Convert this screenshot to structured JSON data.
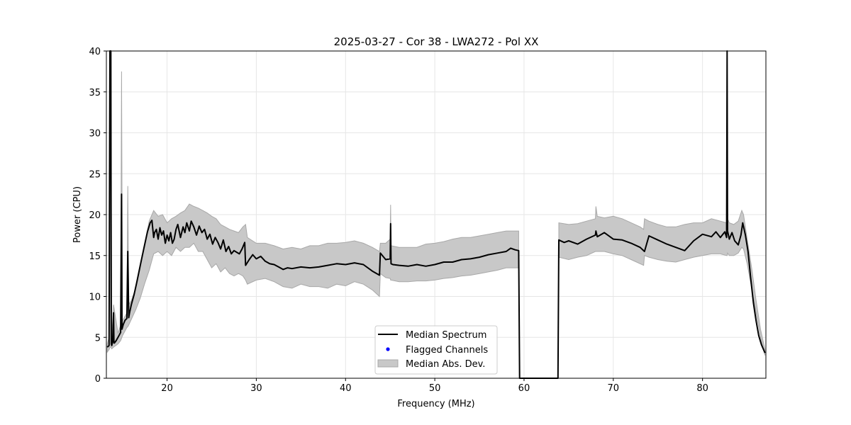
{
  "chart_data": {
    "type": "line",
    "title": "2025-03-27 - Cor 38 - LWA272 - Pol XX",
    "xlabel": "Frequency (MHz)",
    "ylabel": "Power (CPU)",
    "xlim": [
      13.2,
      87.1
    ],
    "ylim": [
      0,
      40
    ],
    "xticks": [
      20,
      30,
      40,
      50,
      60,
      70,
      80
    ],
    "yticks": [
      0,
      5,
      10,
      15,
      20,
      25,
      30,
      35,
      40
    ],
    "grid": true,
    "legend_position": "lower-center",
    "legend": [
      "Median Spectrum",
      "Flagged Channels",
      "Median Abs. Dev."
    ],
    "colors": {
      "median": "#000000",
      "flagged": "#0000ff",
      "mad_fill": "#c8c8c8",
      "mad_edge": "#a8a8a8",
      "grid": "#e6e6e6"
    },
    "series": [
      {
        "name": "Median Spectrum",
        "x": [
          13.3,
          13.5,
          13.6,
          13.7,
          13.75,
          13.8,
          13.9,
          14.0,
          14.05,
          14.1,
          14.3,
          14.5,
          14.8,
          14.9,
          14.95,
          15.1,
          15.3,
          15.5,
          15.6,
          15.7,
          15.8,
          16.0,
          16.3,
          16.6,
          17.0,
          17.4,
          17.8,
          18.1,
          18.3,
          18.5,
          18.6,
          18.8,
          19.0,
          19.2,
          19.4,
          19.6,
          19.8,
          20.0,
          20.2,
          20.4,
          20.6,
          20.8,
          21.0,
          21.2,
          21.5,
          21.8,
          22.0,
          22.2,
          22.5,
          22.7,
          23.0,
          23.3,
          23.6,
          23.9,
          24.2,
          24.5,
          24.8,
          25.1,
          25.4,
          25.7,
          26.0,
          26.3,
          26.6,
          26.9,
          27.2,
          27.5,
          27.8,
          28.1,
          28.4,
          28.7,
          28.8,
          29.2,
          29.6,
          30.0,
          30.5,
          31.0,
          31.5,
          32.0,
          32.5,
          33.0,
          33.5,
          34.0,
          35.0,
          36.0,
          37.0,
          38.0,
          39.0,
          40.0,
          41.0,
          42.0,
          43.0,
          43.8,
          43.9,
          44.5,
          45.0,
          45.05,
          45.1,
          45.3,
          46.0,
          47.0,
          48.0,
          49.0,
          50.0,
          51.0,
          52.0,
          53.0,
          54.0,
          55.0,
          56.0,
          57.0,
          58.0,
          58.5,
          59.0,
          59.4,
          59.5,
          60.0,
          61.0,
          62.0,
          63.0,
          63.8,
          63.9,
          64.5,
          65.0,
          66.0,
          67.0,
          68.0,
          68.05,
          68.2,
          69.0,
          70.0,
          71.0,
          72.0,
          73.0,
          73.5,
          74.0,
          75.0,
          76.0,
          77.0,
          78.0,
          79.0,
          80.0,
          81.0,
          81.5,
          82.0,
          82.5,
          82.7,
          82.75,
          82.8,
          83.0,
          83.3,
          83.6,
          84.0,
          84.3,
          84.5,
          84.8,
          85.1,
          85.4,
          85.7,
          86.0,
          86.3,
          86.6,
          87.0
        ],
        "y": [
          3.8,
          4.0,
          40.0,
          40.0,
          4.2,
          4.0,
          4.5,
          8.0,
          4.3,
          4.3,
          4.6,
          5.0,
          5.6,
          22.5,
          6.0,
          6.6,
          7.1,
          7.3,
          15.5,
          7.4,
          8.0,
          9.0,
          10.2,
          11.7,
          13.8,
          15.9,
          17.9,
          19.0,
          19.3,
          17.2,
          17.8,
          18.2,
          17.0,
          18.4,
          17.5,
          18.0,
          16.5,
          17.5,
          16.8,
          17.8,
          16.5,
          17.0,
          18.2,
          18.8,
          17.2,
          18.5,
          17.8,
          19.0,
          18.0,
          19.2,
          18.5,
          17.5,
          18.6,
          17.8,
          18.2,
          17.0,
          17.6,
          16.4,
          17.2,
          16.6,
          15.8,
          16.9,
          15.5,
          16.1,
          15.2,
          15.6,
          15.4,
          15.2,
          15.8,
          16.6,
          13.8,
          14.5,
          15.1,
          14.6,
          14.9,
          14.3,
          14.0,
          13.9,
          13.6,
          13.3,
          13.5,
          13.4,
          13.6,
          13.5,
          13.6,
          13.8,
          14.0,
          13.9,
          14.1,
          13.9,
          13.1,
          12.6,
          15.3,
          14.5,
          14.6,
          18.9,
          14.0,
          13.9,
          13.8,
          13.7,
          13.9,
          13.7,
          13.9,
          14.2,
          14.2,
          14.5,
          14.6,
          14.8,
          15.1,
          15.3,
          15.5,
          15.9,
          15.7,
          15.6,
          0.0,
          0.0,
          0.0,
          0.0,
          0.0,
          0.0,
          16.9,
          16.6,
          16.8,
          16.4,
          17.0,
          17.5,
          18.0,
          17.3,
          17.8,
          17.0,
          16.9,
          16.5,
          16.0,
          15.5,
          17.4,
          16.9,
          16.4,
          16.0,
          15.6,
          16.8,
          17.6,
          17.3,
          17.9,
          17.2,
          17.9,
          17.2,
          40.0,
          18.0,
          17.0,
          17.8,
          16.8,
          16.3,
          17.5,
          19.0,
          17.5,
          15.5,
          12.2,
          9.2,
          7.0,
          5.2,
          4.1,
          3.1
        ]
      }
    ],
    "mad_band": {
      "name": "Median Abs. Dev.",
      "x": [
        13.3,
        13.5,
        13.6,
        13.7,
        13.8,
        14.0,
        14.5,
        14.8,
        14.9,
        15.0,
        15.5,
        15.6,
        15.7,
        16.0,
        16.5,
        17.0,
        17.5,
        18.0,
        18.5,
        19.0,
        19.5,
        20.0,
        20.5,
        21.0,
        21.5,
        22.0,
        22.5,
        23.0,
        23.5,
        24.0,
        24.5,
        25.0,
        25.5,
        26.0,
        26.5,
        27.0,
        27.5,
        28.0,
        28.5,
        28.8,
        29.0,
        30.0,
        31.0,
        32.0,
        33.0,
        34.0,
        35.0,
        36.0,
        37.0,
        38.0,
        39.0,
        40.0,
        41.0,
        42.0,
        43.0,
        43.8,
        43.9,
        44.5,
        45.0,
        45.05,
        45.1,
        46.0,
        47.0,
        48.0,
        49.0,
        50.0,
        51.0,
        52.0,
        53.0,
        54.0,
        55.0,
        56.0,
        57.0,
        58.0,
        59.4
      ],
      "upper": [
        4.2,
        5.0,
        40.0,
        40.0,
        5.0,
        9.0,
        5.5,
        6.5,
        37.5,
        7.0,
        8.0,
        23.5,
        9.0,
        9.5,
        11.0,
        13.5,
        16.5,
        19.2,
        20.5,
        19.8,
        20.0,
        19.0,
        19.5,
        19.8,
        20.2,
        20.5,
        21.3,
        21.0,
        20.8,
        20.5,
        20.2,
        19.8,
        19.5,
        18.8,
        18.5,
        18.2,
        18.0,
        17.8,
        18.5,
        18.8,
        17.2,
        16.5,
        16.5,
        16.2,
        15.8,
        16.0,
        15.8,
        16.2,
        16.2,
        16.5,
        16.5,
        16.6,
        16.8,
        16.5,
        16.0,
        15.5,
        16.5,
        16.5,
        17.0,
        21.2,
        16.2,
        16.0,
        16.0,
        16.0,
        16.4,
        16.5,
        16.7,
        17.0,
        17.2,
        17.2,
        17.4,
        17.6,
        17.8,
        18.0,
        18.0
      ],
      "lower": [
        3.2,
        3.5,
        3.8,
        3.8,
        3.6,
        3.8,
        4.2,
        4.6,
        4.9,
        5.2,
        6.2,
        6.3,
        6.5,
        7.2,
        8.4,
        9.8,
        11.6,
        13.2,
        15.2,
        15.5,
        15.0,
        15.5,
        15.0,
        16.0,
        15.5,
        16.0,
        16.0,
        16.5,
        15.5,
        15.5,
        14.5,
        13.5,
        14.0,
        13.0,
        13.5,
        12.8,
        12.5,
        12.8,
        12.5,
        12.0,
        11.5,
        12.0,
        12.2,
        11.8,
        11.2,
        11.0,
        11.5,
        11.2,
        11.2,
        11.0,
        11.5,
        11.3,
        11.8,
        11.5,
        10.8,
        10.0,
        12.8,
        12.3,
        12.2,
        12.0,
        12.0,
        11.8,
        11.8,
        11.9,
        11.9,
        12.0,
        12.2,
        12.3,
        12.5,
        12.6,
        12.8,
        13.0,
        13.2,
        13.5,
        13.5
      ]
    },
    "mad_band_2": {
      "x": [
        63.9,
        65.0,
        66.0,
        67.0,
        68.0,
        68.05,
        68.2,
        69.0,
        70.0,
        71.0,
        72.0,
        73.0,
        73.4,
        73.5,
        74.0,
        75.0,
        76.0,
        77.0,
        78.0,
        79.0,
        80.0,
        81.0,
        82.0,
        82.7,
        82.75,
        82.8,
        83.0,
        83.5,
        84.0,
        84.4,
        84.6,
        85.0,
        85.5,
        86.0,
        86.5,
        87.0
      ],
      "upper": [
        19.0,
        18.8,
        18.9,
        19.2,
        19.5,
        21.0,
        19.8,
        19.6,
        19.8,
        19.5,
        19.0,
        18.5,
        18.2,
        19.5,
        19.2,
        18.8,
        18.5,
        18.5,
        18.8,
        19.0,
        19.0,
        19.5,
        19.2,
        19.0,
        40.0,
        19.5,
        19.0,
        18.8,
        19.2,
        20.5,
        20.0,
        17.0,
        13.5,
        9.5,
        6.0,
        3.5
      ],
      "lower": [
        14.8,
        14.5,
        14.8,
        15.0,
        15.5,
        15.5,
        15.5,
        15.5,
        15.2,
        15.0,
        14.5,
        14.0,
        13.8,
        15.0,
        14.8,
        14.5,
        14.3,
        14.2,
        14.5,
        14.8,
        15.0,
        15.2,
        15.2,
        15.0,
        15.0,
        15.3,
        15.0,
        15.0,
        15.3,
        16.0,
        15.8,
        14.0,
        11.0,
        8.0,
        5.0,
        2.8
      ]
    }
  }
}
